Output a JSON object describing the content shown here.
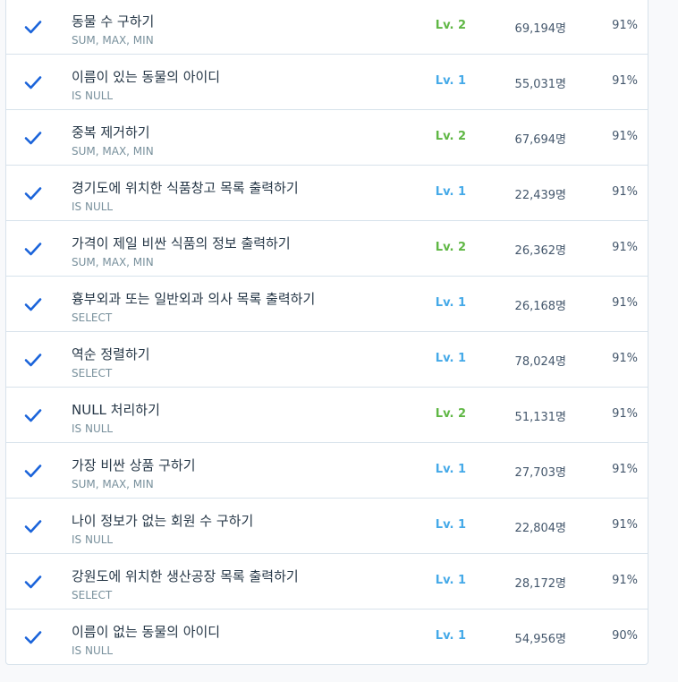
{
  "accent_color": "#1b64da",
  "rows": [
    {
      "title": "동물 수 구하기",
      "tag": "SUM, MAX, MIN",
      "level": "Lv. 2",
      "count": "69,194명",
      "rate": "91%"
    },
    {
      "title": "이름이 있는 동물의 아이디",
      "tag": "IS NULL",
      "level": "Lv. 1",
      "count": "55,031명",
      "rate": "91%"
    },
    {
      "title": "중복 제거하기",
      "tag": "SUM, MAX, MIN",
      "level": "Lv. 2",
      "count": "67,694명",
      "rate": "91%"
    },
    {
      "title": "경기도에 위치한 식품창고 목록 출력하기",
      "tag": "IS NULL",
      "level": "Lv. 1",
      "count": "22,439명",
      "rate": "91%"
    },
    {
      "title": "가격이 제일 비싼 식품의 정보 출력하기",
      "tag": "SUM, MAX, MIN",
      "level": "Lv. 2",
      "count": "26,362명",
      "rate": "91%"
    },
    {
      "title": "흉부외과 또는 일반외과 의사 목록 출력하기",
      "tag": "SELECT",
      "level": "Lv. 1",
      "count": "26,168명",
      "rate": "91%"
    },
    {
      "title": "역순 정렬하기",
      "tag": "SELECT",
      "level": "Lv. 1",
      "count": "78,024명",
      "rate": "91%"
    },
    {
      "title": "NULL 처리하기",
      "tag": "IS NULL",
      "level": "Lv. 2",
      "count": "51,131명",
      "rate": "91%"
    },
    {
      "title": "가장 비싼 상품 구하기",
      "tag": "SUM, MAX, MIN",
      "level": "Lv. 1",
      "count": "27,703명",
      "rate": "91%"
    },
    {
      "title": "나이 정보가 없는 회원 수 구하기",
      "tag": "IS NULL",
      "level": "Lv. 1",
      "count": "22,804명",
      "rate": "91%"
    },
    {
      "title": "강원도에 위치한 생산공장 목록 출력하기",
      "tag": "SELECT",
      "level": "Lv. 1",
      "count": "28,172명",
      "rate": "91%"
    },
    {
      "title": "이름이 없는 동물의 아이디",
      "tag": "IS NULL",
      "level": "Lv. 1",
      "count": "54,956명",
      "rate": "90%"
    }
  ]
}
